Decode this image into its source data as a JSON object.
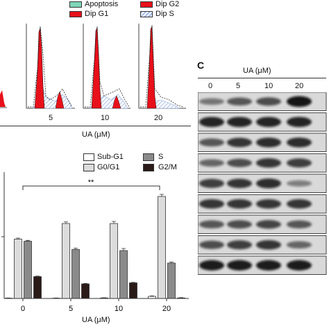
{
  "flow_legend": {
    "items": [
      {
        "label": "Apoptosis",
        "color": "#7fd6b8",
        "pattern": "solid"
      },
      {
        "label": "Dip G2",
        "color": "#e8101a",
        "pattern": "solid"
      },
      {
        "label": "Dip G1",
        "color": "#e8101a",
        "pattern": "solid"
      },
      {
        "label": "Dip S",
        "color": "#9fb6e6",
        "pattern": "hatch"
      }
    ]
  },
  "flow_histograms": {
    "xlabel": "UA (μM)",
    "panels": [
      {
        "label": "5"
      },
      {
        "label": "10"
      },
      {
        "label": "20"
      }
    ]
  },
  "chart_data": {
    "type": "bar",
    "categories": [
      "0",
      "5",
      "10",
      "20"
    ],
    "xlabel": "UA (μM)",
    "ylabel": "",
    "ylim": [
      0,
      100
    ],
    "significance": "**",
    "series": [
      {
        "name": "Sub-G1",
        "color": "#ffffff",
        "values": [
          0.3,
          0.3,
          0.5,
          2.0
        ],
        "errors": [
          0.2,
          0.2,
          0.2,
          0.5
        ]
      },
      {
        "name": "G0/G1",
        "color": "#dcdcdc",
        "values": [
          57,
          72,
          72,
          98
        ],
        "errors": [
          1.0,
          1.5,
          2.0,
          2.0
        ]
      },
      {
        "name": "S",
        "color": "#8a8a8a",
        "values": [
          55,
          47,
          46,
          34
        ],
        "errors": [
          0.8,
          1.2,
          2.0,
          1.0
        ]
      },
      {
        "name": "G2/M",
        "color": "#2a1a18",
        "values": [
          21,
          14,
          15,
          0.5
        ],
        "errors": [
          0.5,
          0.5,
          0.5,
          0.3
        ]
      }
    ],
    "legend_position": "top-right"
  },
  "blot": {
    "letter": "C",
    "treatment_label": "UA (μM)",
    "lanes": [
      "0",
      "5",
      "10",
      "20"
    ],
    "rows": [
      {
        "intensity": [
          0.35,
          0.55,
          0.6,
          0.95
        ]
      },
      {
        "intensity": [
          0.85,
          0.85,
          0.85,
          0.85
        ]
      },
      {
        "intensity": [
          0.55,
          0.75,
          0.8,
          0.8
        ]
      },
      {
        "intensity": [
          0.45,
          0.6,
          0.75,
          0.7
        ]
      },
      {
        "intensity": [
          0.7,
          0.75,
          0.8,
          0.3
        ]
      },
      {
        "intensity": [
          0.75,
          0.75,
          0.75,
          0.75
        ]
      },
      {
        "intensity": [
          0.55,
          0.6,
          0.65,
          0.55
        ]
      },
      {
        "intensity": [
          0.6,
          0.7,
          0.75,
          0.45
        ]
      },
      {
        "intensity": [
          0.9,
          0.9,
          0.9,
          0.9
        ]
      }
    ]
  }
}
